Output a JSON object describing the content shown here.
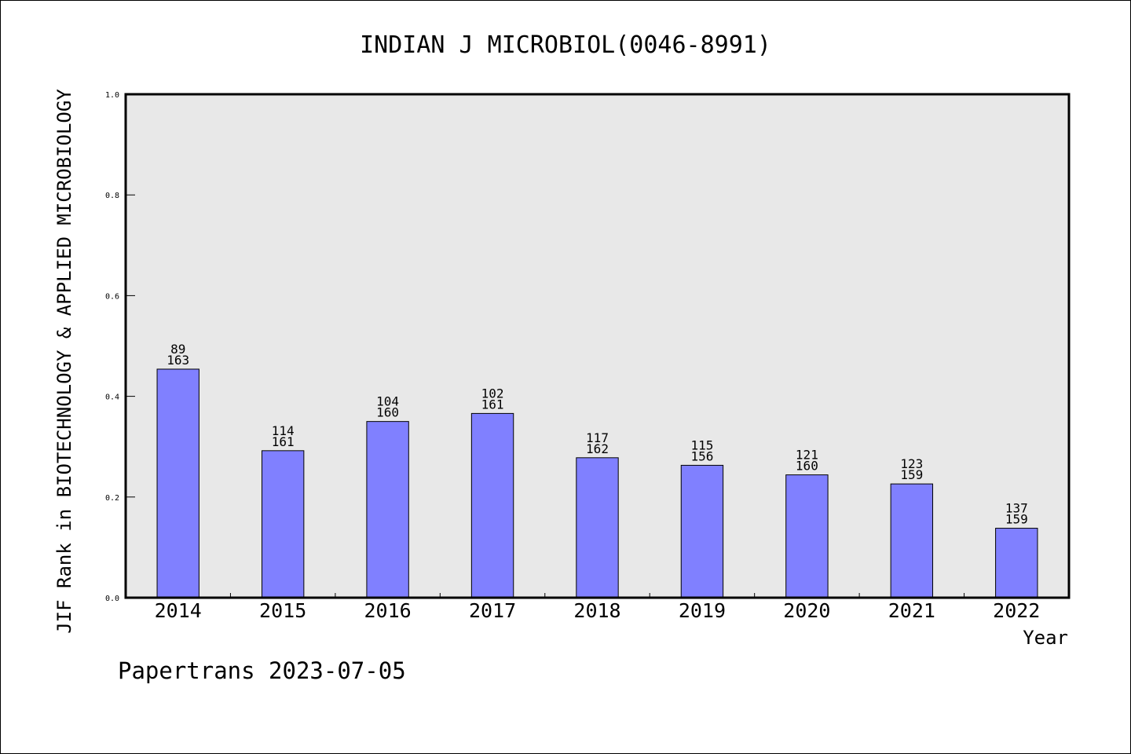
{
  "chart_data": {
    "type": "bar",
    "title": "INDIAN J MICROBIOL(0046-8991)",
    "ylabel": "JIF Rank in BIOTECHNOLOGY & APPLIED MICROBIOLOGY",
    "xlabel": "Year",
    "ylim": [
      0.0,
      1.0
    ],
    "yticks": [
      "0.0",
      "0.2",
      "0.4",
      "0.6",
      "0.8",
      "1.0"
    ],
    "categories": [
      "2014",
      "2015",
      "2016",
      "2017",
      "2018",
      "2019",
      "2020",
      "2021",
      "2022"
    ],
    "values": [
      0.454,
      0.292,
      0.35,
      0.366,
      0.278,
      0.263,
      0.244,
      0.226,
      0.138
    ],
    "rank": [
      "89",
      "114",
      "104",
      "102",
      "117",
      "115",
      "121",
      "123",
      "137"
    ],
    "total": [
      "163",
      "161",
      "160",
      "161",
      "162",
      "156",
      "160",
      "159",
      "159"
    ],
    "bar_color": "#8080ff",
    "plot_background": "#e8e8e8",
    "grid": false,
    "legend": "none"
  },
  "footer": "Papertrans 2023-07-05"
}
